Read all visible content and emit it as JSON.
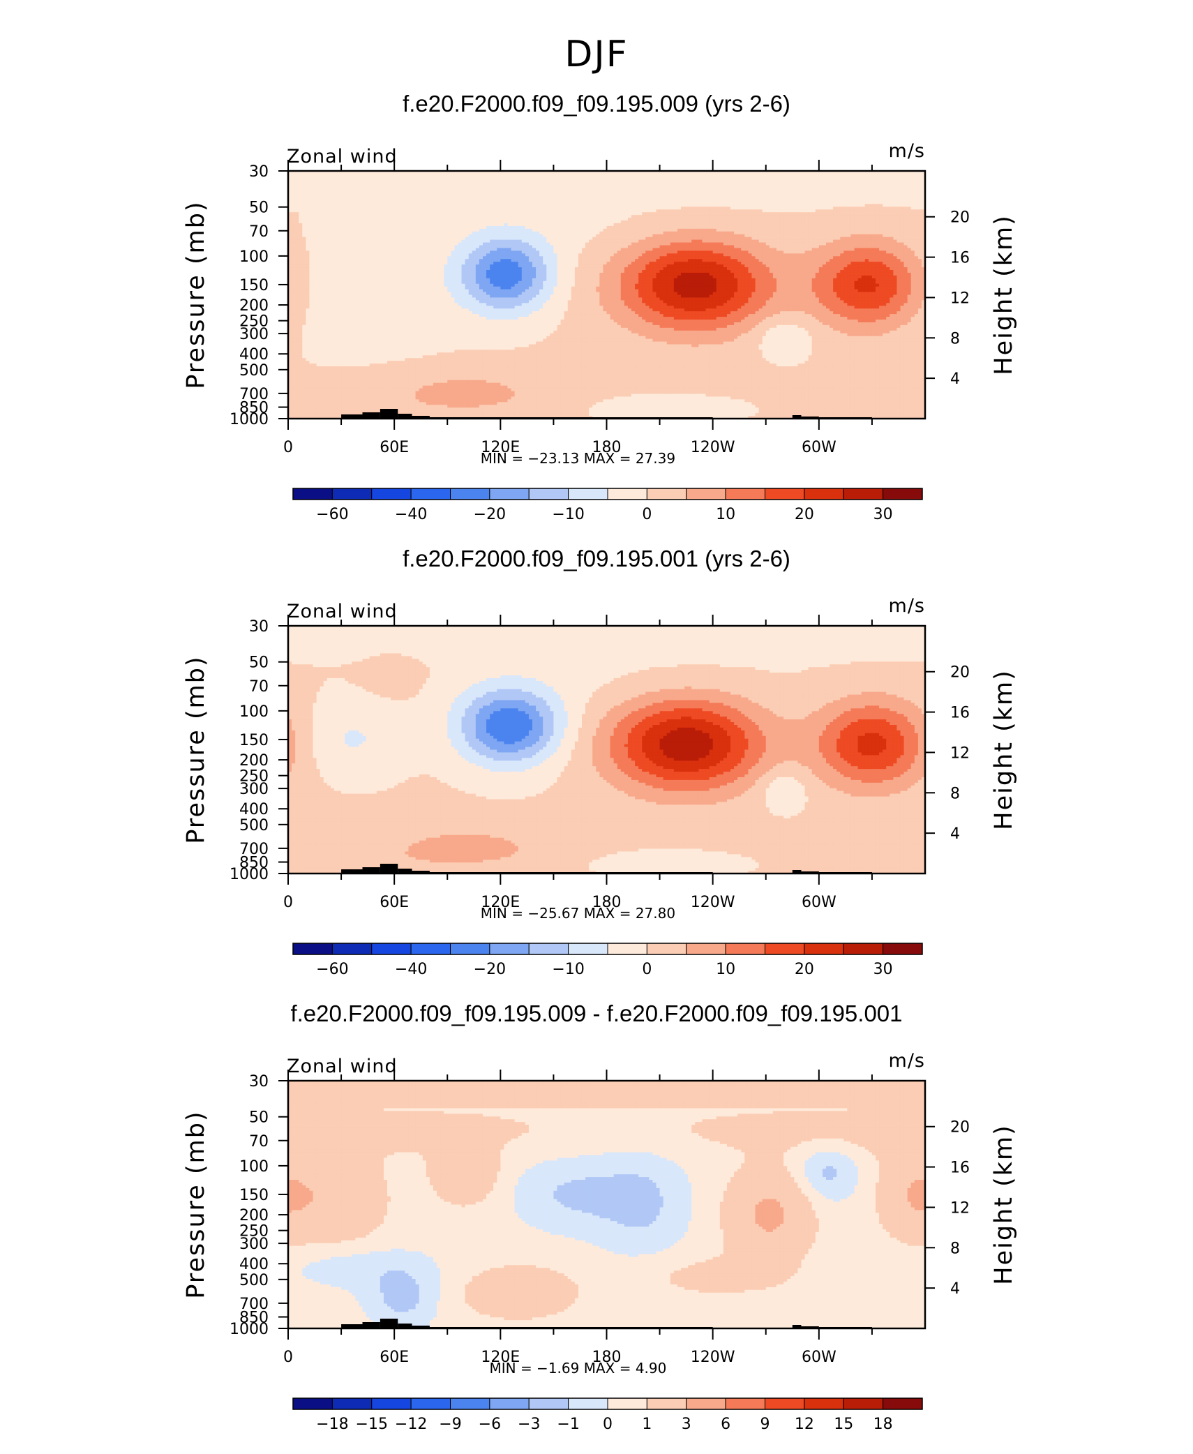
{
  "figure": {
    "title": "DJF"
  },
  "colors": {
    "scale": [
      "#0b0f86",
      "#0d2bb4",
      "#1646e0",
      "#2b66ee",
      "#4c84ef",
      "#7fa6f2",
      "#b1c8f6",
      "#d9e7fb",
      "#feeadb",
      "#fbcdb4",
      "#f8a98b",
      "#f47a58",
      "#ee4a23",
      "#d9300d",
      "#b91d08",
      "#870b0a"
    ]
  },
  "panels": [
    {
      "title": "f.e20.F2000.f09_f09.195.009 (yrs 2-6)",
      "label_left": "Zonal wind",
      "label_right": "m/s",
      "stats": "MIN =  −23.13   MAX =   27.39",
      "colorbar_labels": [
        "−60",
        "−40",
        "−20",
        "−10",
        "0",
        "10",
        "20",
        "30"
      ]
    },
    {
      "title": "f.e20.F2000.f09_f09.195.001 (yrs 2-6)",
      "label_left": "Zonal wind",
      "label_right": "m/s",
      "stats": "MIN =  −25.67   MAX =   27.80",
      "colorbar_labels": [
        "−60",
        "−40",
        "−20",
        "−10",
        "0",
        "10",
        "20",
        "30"
      ]
    },
    {
      "title": "f.e20.F2000.f09_f09.195.009 - f.e20.F2000.f09_f09.195.001",
      "label_left": "Zonal wind",
      "label_right": "m/s",
      "stats": "MIN =   −1.69   MAX =    4.90",
      "colorbar_labels": [
        "−18",
        "−15",
        "−12",
        "−9",
        "−6",
        "−3",
        "−1",
        "0",
        "1",
        "3",
        "6",
        "9",
        "12",
        "15",
        "18"
      ]
    }
  ],
  "chart_data": [
    {
      "type": "heatmap",
      "title": "f.e20.F2000.f09_f09.195.009 (yrs 2-6)",
      "variable": "Zonal wind",
      "units": "m/s",
      "xlabel": "",
      "ylabel": "Pressure (mb)",
      "ylabel_right": "Height (km)",
      "x_ticks": [
        "0",
        "60E",
        "120E",
        "180",
        "120W",
        "60W"
      ],
      "y_ticks": [
        30,
        50,
        70,
        100,
        150,
        200,
        250,
        300,
        400,
        500,
        700,
        850,
        1000
      ],
      "y_ticks_right": [
        4,
        8,
        12,
        16,
        20
      ],
      "y_scale": "log",
      "min": -23.13,
      "max": 27.39,
      "levels": [
        -70,
        -60,
        -50,
        -40,
        -30,
        -20,
        -15,
        -10,
        -5,
        0,
        5,
        10,
        15,
        20,
        25,
        30,
        35
      ],
      "features": [
        {
          "lon": 123,
          "p": 130,
          "value": -20,
          "kind": "easterly max"
        },
        {
          "lon": 230,
          "p": 150,
          "value": 27,
          "kind": "westerly jet max"
        },
        {
          "lon": 328,
          "p": 150,
          "value": 20,
          "kind": "westerly max"
        },
        {
          "lon": 100,
          "p": 700,
          "value": 8,
          "kind": "low-level westerly"
        }
      ]
    },
    {
      "type": "heatmap",
      "title": "f.e20.F2000.f09_f09.195.001 (yrs 2-6)",
      "variable": "Zonal wind",
      "units": "m/s",
      "xlabel": "",
      "ylabel": "Pressure (mb)",
      "ylabel_right": "Height (km)",
      "x_ticks": [
        "0",
        "60E",
        "120E",
        "180",
        "120W",
        "60W"
      ],
      "y_ticks": [
        30,
        50,
        70,
        100,
        150,
        200,
        250,
        300,
        400,
        500,
        700,
        850,
        1000
      ],
      "y_ticks_right": [
        4,
        8,
        12,
        16,
        20
      ],
      "y_scale": "log",
      "min": -25.67,
      "max": 27.8,
      "levels": [
        -70,
        -60,
        -50,
        -40,
        -30,
        -20,
        -15,
        -10,
        -5,
        0,
        5,
        10,
        15,
        20,
        25,
        30,
        35
      ],
      "features": [
        {
          "lon": 125,
          "p": 125,
          "value": -22,
          "kind": "easterly max"
        },
        {
          "lon": 225,
          "p": 160,
          "value": 27,
          "kind": "westerly jet max"
        },
        {
          "lon": 330,
          "p": 160,
          "value": 20,
          "kind": "westerly max"
        },
        {
          "lon": 100,
          "p": 700,
          "value": 8,
          "kind": "low-level westerly"
        }
      ]
    },
    {
      "type": "heatmap",
      "title": "f.e20.F2000.f09_f09.195.009 - f.e20.F2000.f09_f09.195.001",
      "variable": "Zonal wind",
      "units": "m/s",
      "xlabel": "",
      "ylabel": "Pressure (mb)",
      "ylabel_right": "Height (km)",
      "x_ticks": [
        "0",
        "60E",
        "120E",
        "180",
        "120W",
        "60W"
      ],
      "y_ticks": [
        30,
        50,
        70,
        100,
        150,
        200,
        250,
        300,
        400,
        500,
        700,
        850,
        1000
      ],
      "y_ticks_right": [
        4,
        8,
        12,
        16,
        20
      ],
      "y_scale": "log",
      "min": -1.69,
      "max": 4.9,
      "levels": [
        -21,
        -18,
        -15,
        -12,
        -9,
        -6,
        -3,
        -1,
        0,
        1,
        3,
        6,
        9,
        12,
        15,
        18,
        21
      ],
      "features": [
        {
          "lon": 28,
          "p": 160,
          "value": 2,
          "kind": "positive"
        },
        {
          "lon": 160,
          "p": 150,
          "value": -1,
          "kind": "negative"
        },
        {
          "lon": 200,
          "p": 170,
          "value": -1.5,
          "kind": "negative"
        },
        {
          "lon": 272,
          "p": 200,
          "value": 3,
          "kind": "positive"
        },
        {
          "lon": 305,
          "p": 110,
          "value": -1.5,
          "kind": "negative"
        },
        {
          "lon": 65,
          "p": 700,
          "value": -1.5,
          "kind": "negative"
        }
      ]
    }
  ]
}
